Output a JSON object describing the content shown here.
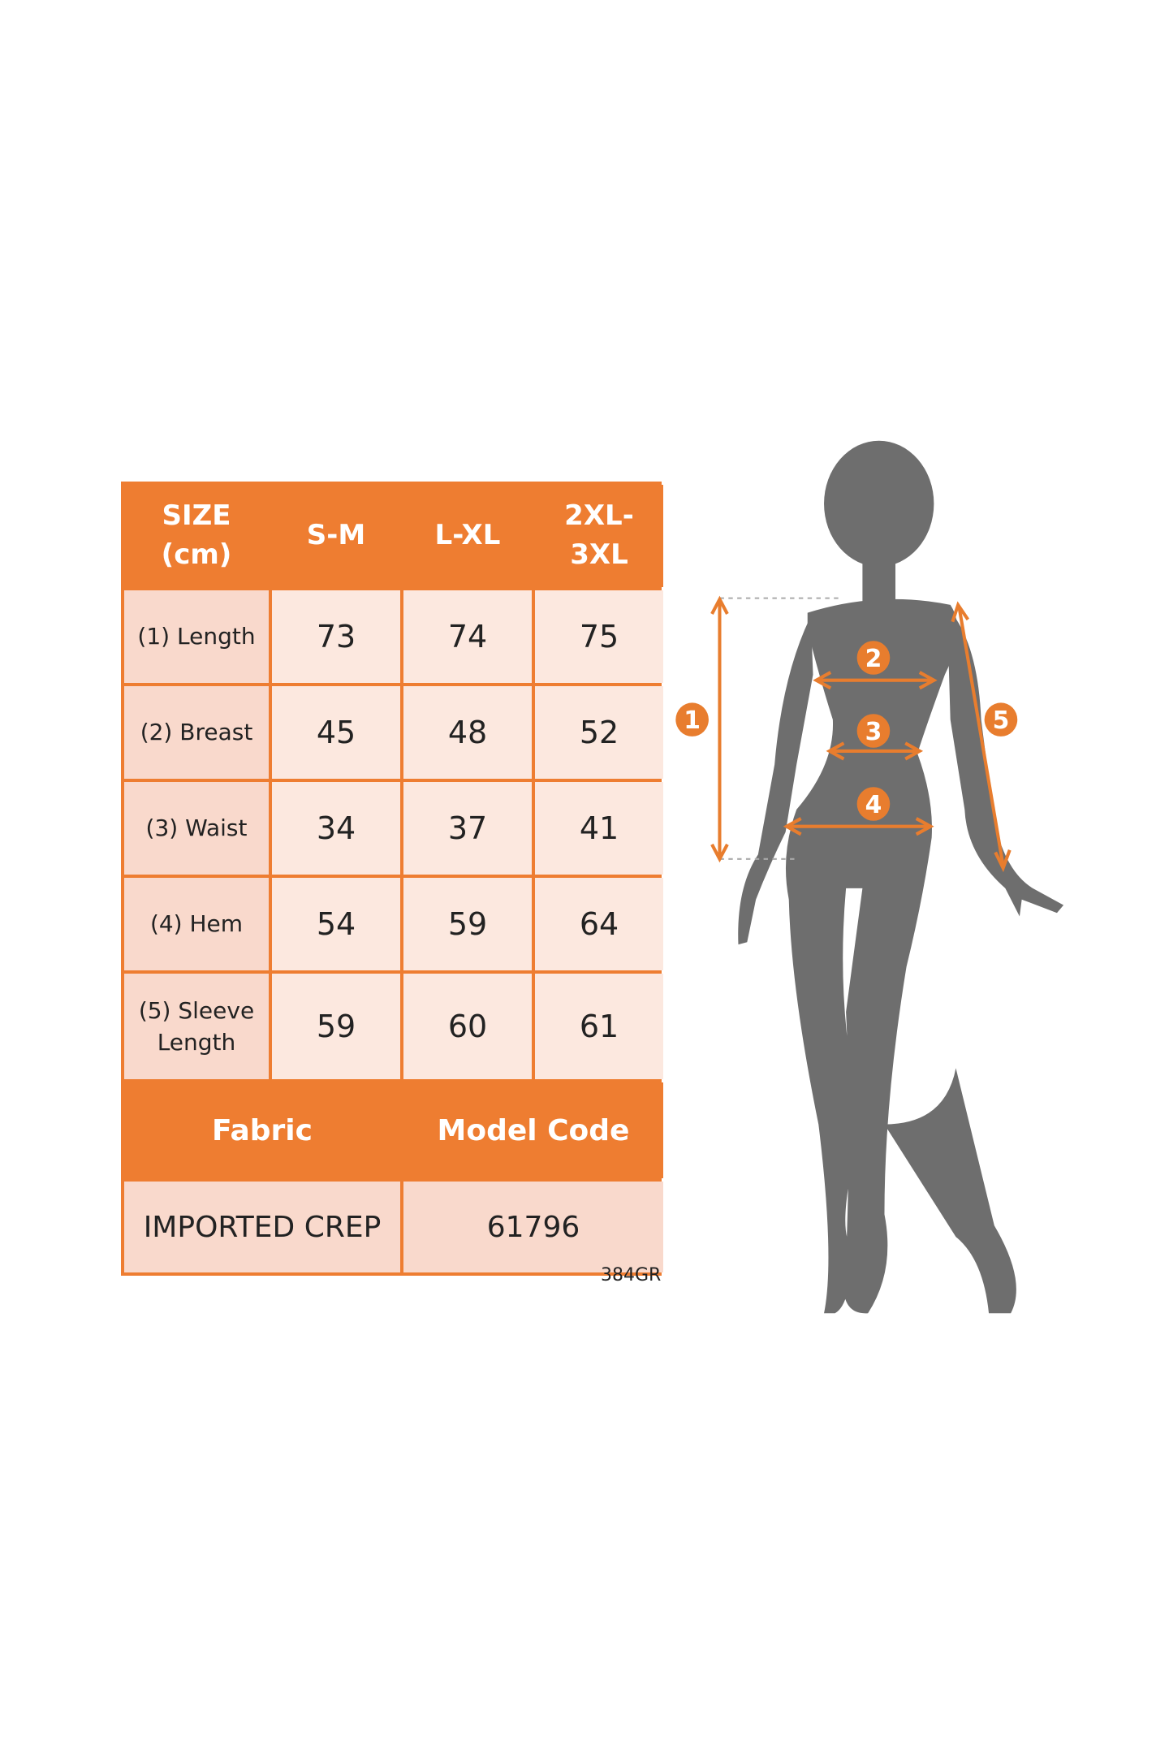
{
  "table": {
    "header": [
      "SIZE (cm)",
      "S-M",
      "L-XL",
      "2XL-3XL"
    ],
    "rows": [
      [
        "(1) Length",
        73,
        74,
        75
      ],
      [
        "(2) Breast",
        45,
        48,
        52
      ],
      [
        "(3) Waist",
        34,
        37,
        41
      ],
      [
        "(4) Hem",
        54,
        59,
        64
      ],
      [
        "(5) Sleeve Length",
        59,
        60,
        61
      ]
    ],
    "footer_header": [
      "Fabric",
      "Model Code"
    ],
    "footer_row": [
      "IMPORTED CREP",
      61796
    ]
  },
  "code": "384GR",
  "figure": {
    "markers": [
      "1",
      "2",
      "3",
      "4",
      "5"
    ]
  }
}
